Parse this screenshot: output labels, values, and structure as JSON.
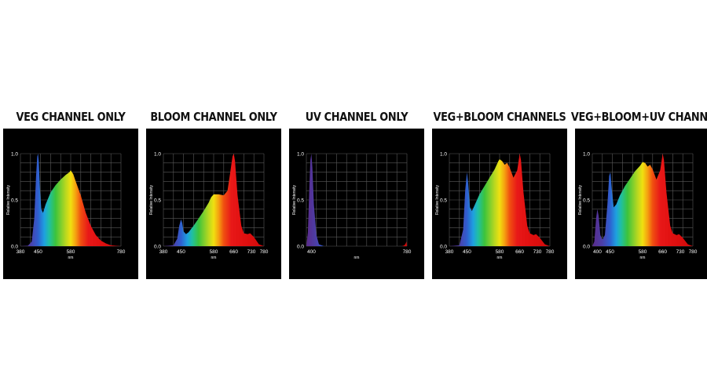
{
  "colors": {
    "background": "#ffffff",
    "chart_background": "#000000",
    "grid": "#5a5a5a",
    "text": "#ffffff",
    "title": "#111111"
  },
  "chart_data": [
    {
      "type": "area",
      "title": "VEG CHANNEL ONLY",
      "xlabel": "nm",
      "ylabel": "Relative Intensity",
      "xlim": [
        380,
        780
      ],
      "ylim": [
        0,
        1
      ],
      "x_ticks": [
        "380",
        "450",
        "580",
        "780"
      ],
      "y_ticks": [
        "0.0",
        "0.5",
        "1.0"
      ],
      "grid": true,
      "x": [
        380,
        410,
        425,
        435,
        442,
        447,
        450,
        453,
        458,
        463,
        470,
        480,
        500,
        520,
        540,
        560,
        575,
        580,
        590,
        600,
        620,
        640,
        660,
        680,
        700,
        720,
        740,
        760,
        780
      ],
      "y": [
        0,
        0.005,
        0.05,
        0.3,
        0.75,
        0.97,
        1.0,
        0.92,
        0.6,
        0.4,
        0.36,
        0.45,
        0.58,
        0.66,
        0.72,
        0.77,
        0.8,
        0.82,
        0.78,
        0.7,
        0.55,
        0.36,
        0.22,
        0.12,
        0.06,
        0.03,
        0.01,
        0.004,
        0
      ]
    },
    {
      "type": "area",
      "title": "BLOOM CHANNEL ONLY",
      "xlabel": "nm",
      "ylabel": "Relative Intensity",
      "xlim": [
        380,
        780
      ],
      "ylim": [
        0,
        1
      ],
      "x_ticks": [
        "380",
        "450",
        "580",
        "660",
        "730",
        "780"
      ],
      "y_ticks": [
        "0.0",
        "0.5",
        "1.0"
      ],
      "grid": true,
      "x": [
        380,
        420,
        435,
        443,
        450,
        455,
        460,
        470,
        480,
        500,
        520,
        540,
        560,
        570,
        580,
        600,
        620,
        635,
        645,
        655,
        660,
        665,
        675,
        690,
        700,
        715,
        725,
        740,
        760,
        780
      ],
      "y": [
        0,
        0.01,
        0.08,
        0.22,
        0.29,
        0.25,
        0.16,
        0.13,
        0.15,
        0.22,
        0.3,
        0.38,
        0.47,
        0.53,
        0.56,
        0.56,
        0.55,
        0.6,
        0.78,
        0.97,
        1.0,
        0.92,
        0.55,
        0.22,
        0.14,
        0.13,
        0.14,
        0.1,
        0.02,
        0
      ]
    },
    {
      "type": "area",
      "title": "UV CHANNEL ONLY",
      "xlabel": "nm",
      "ylabel": "Relative Intensity",
      "xlim": [
        380,
        780
      ],
      "ylim": [
        0,
        1
      ],
      "x_ticks": [
        "400",
        "780"
      ],
      "y_ticks": [
        "0.0",
        "0.5",
        "1.0"
      ],
      "grid": true,
      "x": [
        380,
        386,
        392,
        396,
        400,
        404,
        410,
        420,
        430,
        450,
        500,
        600,
        700,
        760,
        770,
        775,
        778,
        780
      ],
      "y": [
        0,
        0.15,
        0.65,
        0.93,
        1.0,
        0.85,
        0.45,
        0.12,
        0.02,
        0,
        0,
        0,
        0,
        0,
        0.01,
        0.03,
        0.05,
        0
      ]
    },
    {
      "type": "area",
      "title": "VEG+BLOOM CHANNELS",
      "xlabel": "nm",
      "ylabel": "Relative Intensity",
      "xlim": [
        380,
        780
      ],
      "ylim": [
        0,
        1
      ],
      "x_ticks": [
        "380",
        "450",
        "580",
        "660",
        "730",
        "780"
      ],
      "y_ticks": [
        "0.0",
        "0.5",
        "1.0"
      ],
      "grid": true,
      "x": [
        380,
        420,
        435,
        443,
        450,
        455,
        462,
        470,
        480,
        500,
        520,
        540,
        560,
        575,
        580,
        590,
        600,
        610,
        620,
        635,
        650,
        660,
        665,
        675,
        690,
        700,
        715,
        725,
        740,
        760,
        780
      ],
      "y": [
        0,
        0.01,
        0.18,
        0.6,
        0.8,
        0.68,
        0.42,
        0.38,
        0.44,
        0.56,
        0.65,
        0.74,
        0.83,
        0.92,
        0.94,
        0.92,
        0.88,
        0.9,
        0.85,
        0.74,
        0.82,
        1.0,
        0.93,
        0.58,
        0.22,
        0.14,
        0.12,
        0.13,
        0.09,
        0.02,
        0
      ]
    },
    {
      "type": "area",
      "title": "VEG+BLOOM+UV CHANNELS",
      "xlabel": "nm",
      "ylabel": "Relative Intensity",
      "xlim": [
        380,
        780
      ],
      "ylim": [
        0,
        1
      ],
      "x_ticks": [
        "400",
        "450",
        "580",
        "660",
        "730",
        "780"
      ],
      "y_ticks": [
        "0.0",
        "0.5",
        "1.0"
      ],
      "grid": true,
      "x": [
        380,
        388,
        395,
        400,
        405,
        412,
        420,
        430,
        440,
        447,
        452,
        458,
        465,
        475,
        490,
        510,
        530,
        550,
        570,
        580,
        590,
        600,
        610,
        620,
        635,
        650,
        660,
        665,
        675,
        690,
        700,
        715,
        725,
        740,
        760,
        780
      ],
      "y": [
        0,
        0.05,
        0.3,
        0.4,
        0.33,
        0.12,
        0.07,
        0.12,
        0.45,
        0.76,
        0.8,
        0.6,
        0.42,
        0.45,
        0.55,
        0.65,
        0.73,
        0.81,
        0.87,
        0.91,
        0.9,
        0.86,
        0.88,
        0.83,
        0.72,
        0.82,
        1.0,
        0.93,
        0.58,
        0.22,
        0.14,
        0.12,
        0.13,
        0.09,
        0.02,
        0
      ]
    }
  ]
}
